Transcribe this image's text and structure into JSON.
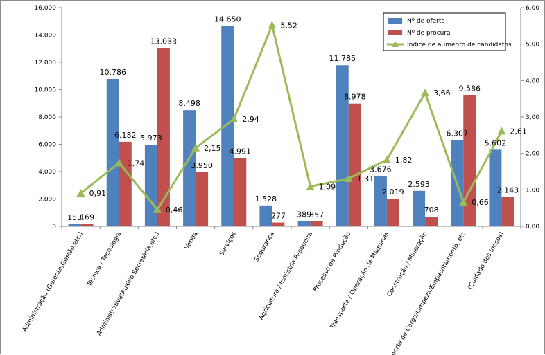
{
  "chart_data": {
    "type": "bar",
    "categories": [
      "Administração (Gerente,Gestão,etc.)",
      "Técnica / Tecnologia",
      "Administrativa(Auxilio,Secretária,etc.)",
      "Venda",
      "Serviços",
      "Segurança",
      "Agricultura / Indústria Pesqueira",
      "Processo de Produção",
      "Transporte / Operação de Máquinas",
      "Construção / Mineração",
      "Transporte de Carga/Limpeza/Empacotamento, etc",
      "(Cuidado dos Idosos)"
    ],
    "series": [
      {
        "name": "Nº de oferta",
        "type": "bar",
        "axis": "left",
        "color": "#4F81BD",
        "values": [
          153,
          10786,
          5973,
          8498,
          14650,
          1528,
          389,
          11785,
          3676,
          2593,
          6307,
          5602
        ],
        "labels": [
          "153",
          "10.786",
          "5.973",
          "8.498",
          "14.650",
          "1.528",
          "389",
          "11.785",
          "3.676",
          "2.593",
          "6.307",
          "5.602"
        ]
      },
      {
        "name": "Nº de procura",
        "type": "bar",
        "axis": "left",
        "color": "#C0504D",
        "values": [
          169,
          6182,
          13033,
          3950,
          4991,
          277,
          357,
          8978,
          2019,
          708,
          9586,
          2143
        ],
        "labels": [
          "169",
          "6.182",
          "13.033",
          "3.950",
          "4.991",
          "277",
          "357",
          "8.978",
          "2.019",
          "708",
          "9.586",
          "2.143"
        ]
      },
      {
        "name": "Índice de aumento de candidatos",
        "type": "line",
        "axis": "right",
        "color": "#9BBB59",
        "values": [
          0.91,
          1.74,
          0.46,
          2.15,
          2.94,
          5.52,
          1.09,
          1.31,
          1.82,
          3.66,
          0.66,
          2.61
        ],
        "labels": [
          "0,91",
          "1,74",
          "0,46",
          "2,15",
          "2,94",
          "5,52",
          "1,09",
          "1,31",
          "1,82",
          "3,66",
          "0,66",
          "2,61"
        ]
      }
    ],
    "y_left": {
      "ylim": [
        0,
        16000
      ],
      "ticks": [
        "0",
        "2.000",
        "4.000",
        "6.000",
        "8.000",
        "10.000",
        "12.000",
        "14.000",
        "16.000"
      ]
    },
    "y_right": {
      "ylim": [
        0,
        6
      ],
      "ticks": [
        "0,00",
        "1,00",
        "2,00",
        "3,00",
        "4,00",
        "5,00",
        "6,00"
      ]
    },
    "grid": false,
    "legend": "top-right"
  }
}
